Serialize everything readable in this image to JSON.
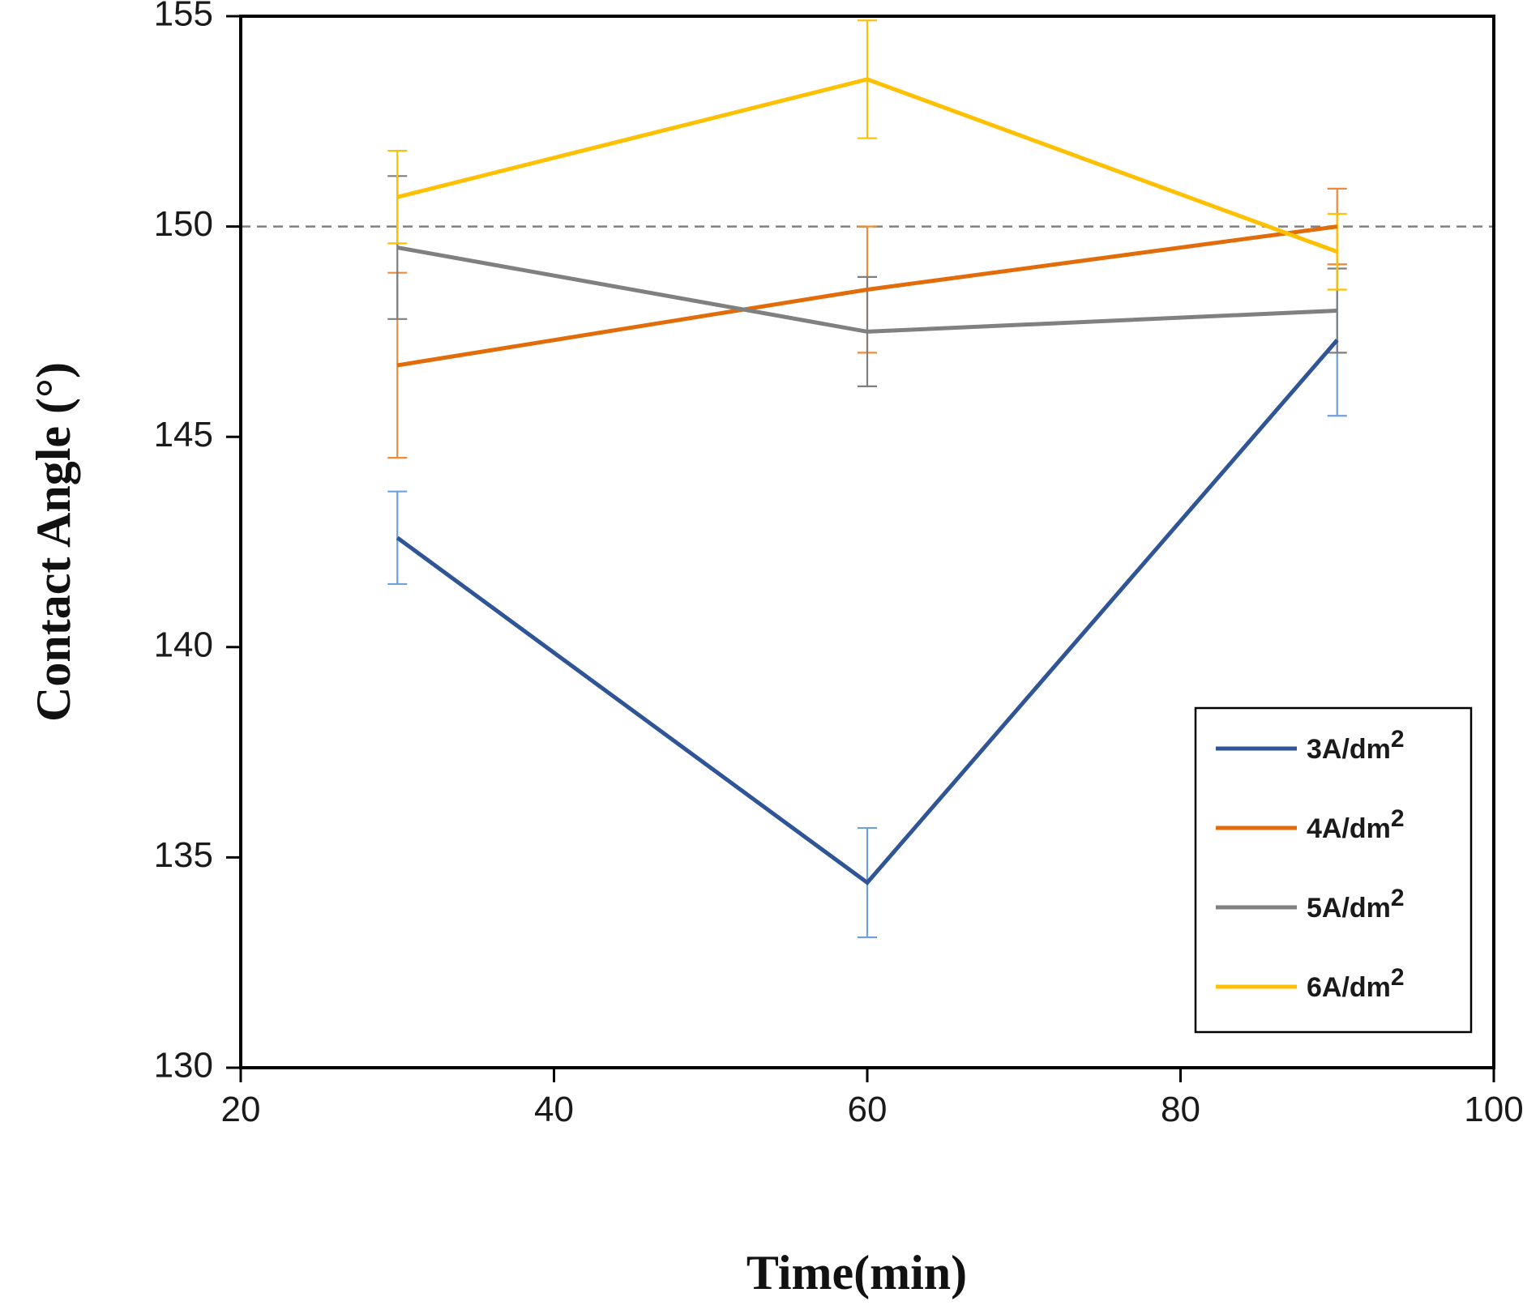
{
  "chart_data": {
    "type": "line",
    "xlabel": "Time(min)",
    "ylabel": "Contact Angle (°)",
    "xlim": [
      20,
      100
    ],
    "ylim": [
      130,
      155
    ],
    "x_ticks": [
      20,
      40,
      60,
      80,
      100
    ],
    "y_ticks": [
      130,
      135,
      140,
      145,
      150,
      155
    ],
    "reference_line": {
      "y": 150,
      "style": "dashed",
      "color": "#808080"
    },
    "legend_position": "bottom-right",
    "x": [
      30,
      60,
      90
    ],
    "series": [
      {
        "name": "3A/dm",
        "sup": "2",
        "color": "#2F5597",
        "errorColor": "#6FA0DC",
        "values": [
          142.6,
          134.4,
          147.3
        ],
        "errors": [
          1.1,
          1.3,
          1.8
        ]
      },
      {
        "name": "4A/dm",
        "sup": "2",
        "color": "#E36C0A",
        "errorColor": "#ED8B3A",
        "values": [
          146.7,
          148.5,
          150.0
        ],
        "errors": [
          2.2,
          1.5,
          0.9
        ]
      },
      {
        "name": "5A/dm",
        "sup": "2",
        "color": "#808080",
        "errorColor": "#7F7F7F",
        "values": [
          149.5,
          147.5,
          148.0
        ],
        "errors": [
          1.7,
          1.3,
          1.0
        ]
      },
      {
        "name": "6A/dm",
        "sup": "2",
        "color": "#FFC000",
        "errorColor": "#FFC000",
        "values": [
          150.7,
          153.5,
          149.4
        ],
        "errors": [
          1.1,
          1.4,
          0.9
        ]
      }
    ]
  }
}
